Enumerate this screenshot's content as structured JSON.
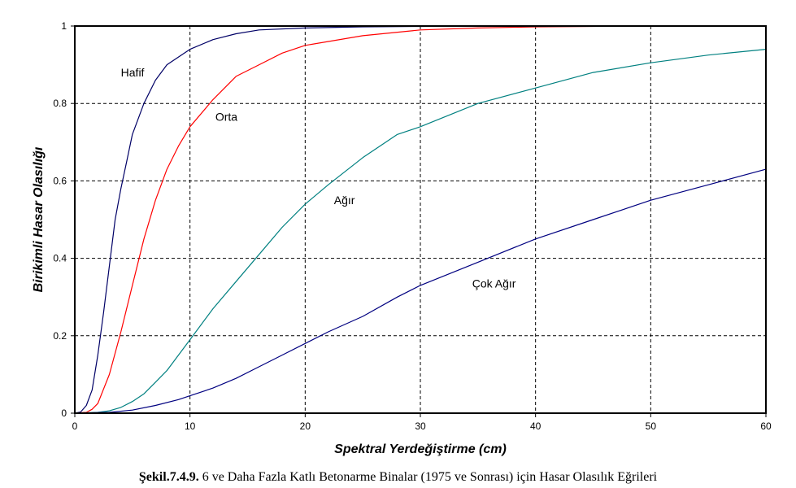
{
  "caption": {
    "prefix": "Şekil.7.4.9.",
    "text": " 6 ve Daha Fazla Katlı Betonarme Binalar (1975 ve Sonrası) için Hasar Olasılık Eğrileri"
  },
  "chart_data": {
    "type": "line",
    "title": "",
    "xlabel": "Spektral Yerdeğiştirme  (cm)",
    "ylabel": "Birikimli Hasar Olasılığı",
    "xlim": [
      0,
      60
    ],
    "ylim": [
      0,
      1
    ],
    "xticks": [
      0,
      10,
      20,
      30,
      40,
      50,
      60
    ],
    "yticks": [
      0,
      0.2,
      0.4,
      0.6,
      0.8,
      1
    ],
    "ytick_labels": [
      "0",
      "0.2",
      "0.4",
      "0.6",
      "0.8",
      "1"
    ],
    "grid": true,
    "legend": "none",
    "series": [
      {
        "name": "Hafif",
        "color": "#000066",
        "label_at": [
          4,
          0.87
        ],
        "x": [
          0,
          0.5,
          1,
          1.5,
          2,
          2.5,
          3,
          3.5,
          4,
          4.5,
          5,
          6,
          7,
          8,
          9,
          10,
          12,
          14,
          16,
          20,
          25,
          30,
          40,
          60
        ],
        "y": [
          0,
          0.003,
          0.02,
          0.06,
          0.15,
          0.26,
          0.38,
          0.5,
          0.58,
          0.65,
          0.72,
          0.8,
          0.86,
          0.9,
          0.92,
          0.94,
          0.965,
          0.98,
          0.99,
          0.995,
          0.998,
          0.999,
          1,
          1
        ]
      },
      {
        "name": "Orta",
        "color": "#ff0000",
        "label_at": [
          12.2,
          0.755
        ],
        "x": [
          0,
          1,
          1.5,
          2,
          3,
          4,
          5,
          6,
          7,
          8,
          9,
          10,
          12,
          14,
          16,
          18,
          20,
          25,
          30,
          35,
          40,
          50,
          60
        ],
        "y": [
          0,
          0.002,
          0.01,
          0.025,
          0.1,
          0.21,
          0.33,
          0.45,
          0.55,
          0.63,
          0.69,
          0.74,
          0.81,
          0.87,
          0.9,
          0.93,
          0.95,
          0.975,
          0.99,
          0.995,
          0.998,
          1,
          1
        ]
      },
      {
        "name": "Ağır",
        "color": "#008080",
        "label_at": [
          22.5,
          0.54
        ],
        "x": [
          0,
          2,
          3,
          4,
          5,
          6,
          7,
          8,
          10,
          12,
          14,
          16,
          18,
          20,
          22,
          25,
          28,
          30,
          35,
          40,
          45,
          50,
          55,
          60
        ],
        "y": [
          0,
          0.002,
          0.006,
          0.015,
          0.03,
          0.05,
          0.08,
          0.11,
          0.19,
          0.27,
          0.34,
          0.41,
          0.48,
          0.54,
          0.59,
          0.66,
          0.72,
          0.74,
          0.8,
          0.84,
          0.88,
          0.905,
          0.925,
          0.94
        ]
      },
      {
        "name": "Çok Ağır",
        "color": "#000080",
        "label_at": [
          34.5,
          0.325
        ],
        "x": [
          0,
          3,
          5,
          7,
          9,
          10,
          12,
          14,
          16,
          18,
          20,
          22,
          25,
          28,
          30,
          35,
          40,
          45,
          50,
          55,
          60
        ],
        "y": [
          0,
          0.002,
          0.008,
          0.02,
          0.035,
          0.045,
          0.065,
          0.09,
          0.12,
          0.15,
          0.18,
          0.21,
          0.25,
          0.3,
          0.33,
          0.39,
          0.45,
          0.5,
          0.55,
          0.59,
          0.63
        ]
      }
    ]
  }
}
